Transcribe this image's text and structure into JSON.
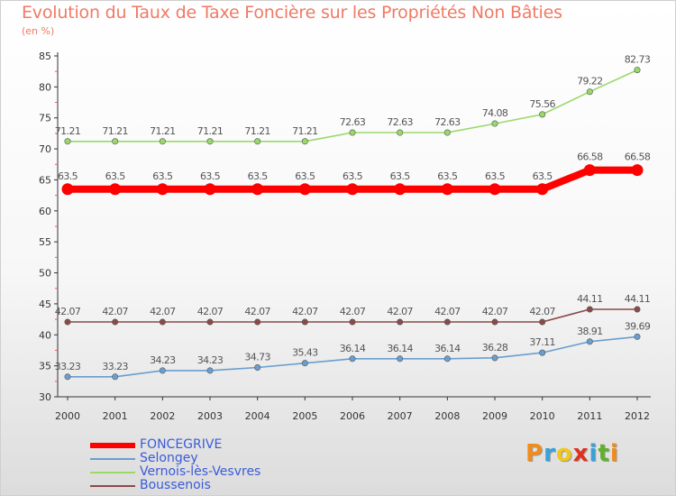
{
  "title": "Evolution du Taux de Taxe Foncière sur les Propriétés Non Bâties",
  "subtitle": "(en %)",
  "logo": {
    "text": "Proxiti",
    "colors": [
      "#f08c1c",
      "#3aa0d8",
      "#f0c81c",
      "#e0301c",
      "#3aa0d8",
      "#60b030",
      "#f08c1c"
    ]
  },
  "chart_data": {
    "type": "line",
    "title": "Evolution du Taux de Taxe Foncière sur les Propriétés Non Bâties",
    "ylabel": "(en %)",
    "xlabel": "",
    "ylim": [
      30,
      85
    ],
    "yticks": [
      "30",
      "35",
      "40",
      "45",
      "50",
      "55",
      "60",
      "65",
      "70",
      "75",
      "80",
      "85"
    ],
    "categories": [
      "2000",
      "2001",
      "2002",
      "2003",
      "2004",
      "2005",
      "2006",
      "2007",
      "2008",
      "2009",
      "2010",
      "2011",
      "2012"
    ],
    "series": [
      {
        "name": "FONCEGRIVE",
        "color": "#ff0000",
        "values": [
          63.5,
          63.5,
          63.5,
          63.5,
          63.5,
          63.5,
          63.5,
          63.5,
          63.5,
          63.5,
          63.5,
          66.58,
          66.58
        ],
        "labels": [
          "63.5",
          "63.5",
          "63.5",
          "63.5",
          "63.5",
          "63.5",
          "63.5",
          "63.5",
          "63.5",
          "63.5",
          "63.5",
          "66.58",
          "66.58"
        ]
      },
      {
        "name": "Selongey",
        "color": "#6a9ecf",
        "values": [
          33.23,
          33.23,
          34.23,
          34.23,
          34.73,
          35.43,
          36.14,
          36.14,
          36.14,
          36.28,
          37.11,
          38.91,
          39.69
        ],
        "labels": [
          "33.23",
          "33.23",
          "34.23",
          "34.23",
          "34.73",
          "35.43",
          "36.14",
          "36.14",
          "36.14",
          "36.28",
          "37.11",
          "38.91",
          "39.69"
        ]
      },
      {
        "name": "Vernois-lès-Vesvres",
        "color": "#99d96a",
        "values": [
          71.21,
          71.21,
          71.21,
          71.21,
          71.21,
          71.21,
          72.63,
          72.63,
          72.63,
          74.08,
          75.56,
          79.22,
          82.73
        ],
        "labels": [
          "71.21",
          "71.21",
          "71.21",
          "71.21",
          "71.21",
          "71.21",
          "72.63",
          "72.63",
          "72.63",
          "74.08",
          "75.56",
          "79.22",
          "82.73"
        ]
      },
      {
        "name": "Boussenois",
        "color": "#8b4a4a",
        "values": [
          42.07,
          42.07,
          42.07,
          42.07,
          42.07,
          42.07,
          42.07,
          42.07,
          42.07,
          42.07,
          42.07,
          44.11,
          44.11
        ],
        "labels": [
          "42.07",
          "42.07",
          "42.07",
          "42.07",
          "42.07",
          "42.07",
          "42.07",
          "42.07",
          "42.07",
          "42.07",
          "42.07",
          "44.11",
          "44.11"
        ]
      }
    ],
    "legend_position": "bottom-left",
    "grid": false
  }
}
